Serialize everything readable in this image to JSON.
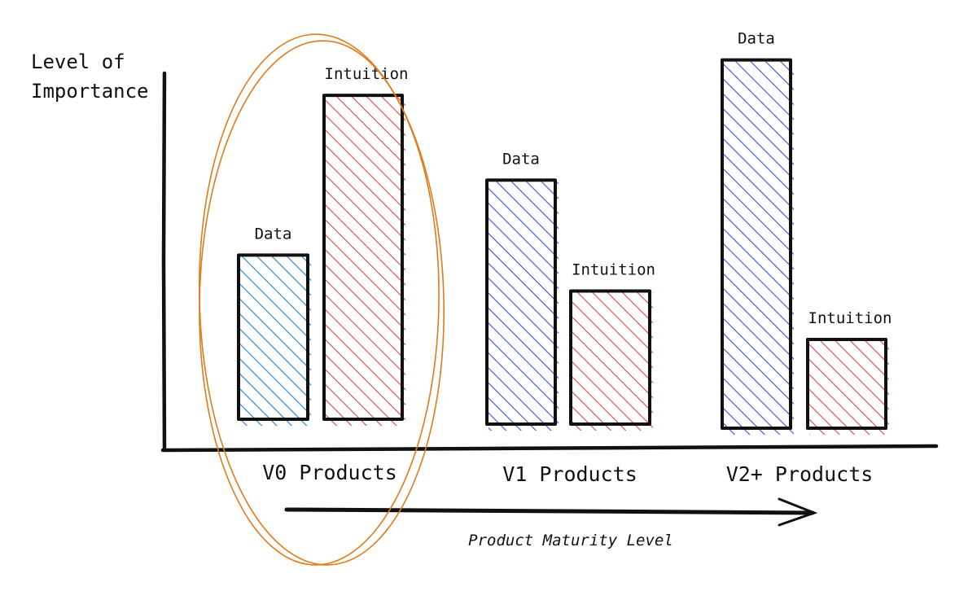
{
  "chart_data": {
    "type": "bar",
    "ylabel_lines": [
      "Level of",
      "Importance"
    ],
    "xlabel": "Product Maturity Level",
    "categories": [
      "V0 Products",
      "V1 Products",
      "V2+ Products"
    ],
    "series": [
      {
        "name": "Data",
        "values": [
          3.7,
          5.5,
          8.3
        ]
      },
      {
        "name": "Intuition",
        "values": [
          7.3,
          3.0,
          2.0
        ]
      }
    ],
    "bar_labels": [
      [
        "Data",
        "Intuition"
      ],
      [
        "Data",
        "Intuition"
      ],
      [
        "Data",
        "Intuition"
      ]
    ],
    "bar_colors": [
      [
        "#1f7fd4",
        "#e04545"
      ],
      [
        "#3550dc",
        "#e04545"
      ],
      [
        "#3550dc",
        "#e04545"
      ]
    ],
    "ylim": [
      0,
      9
    ],
    "y_ticks": false,
    "grid": false,
    "legend": false,
    "highlighted_category": "V0 Products",
    "highlight_color": "#e07b1a"
  }
}
